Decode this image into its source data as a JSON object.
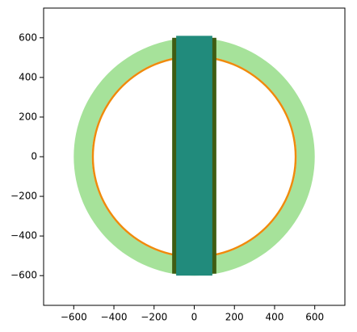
{
  "chart_data": {
    "type": "geometry",
    "xlim": [
      -750,
      750
    ],
    "ylim": [
      -750,
      750
    ],
    "xticks": [
      {
        "value": -600,
        "label": "−600"
      },
      {
        "value": -400,
        "label": "−400"
      },
      {
        "value": -200,
        "label": "−200"
      },
      0,
      200,
      400,
      600
    ],
    "yticks": [
      {
        "value": -600,
        "label": "−600"
      },
      {
        "value": -400,
        "label": "−400"
      },
      {
        "value": -200,
        "label": "−200"
      },
      0,
      200,
      400,
      600
    ],
    "shapes": [
      {
        "shape": "annulus",
        "r_inner": 510,
        "r_outer": 600,
        "color": "#a6e29a"
      },
      {
        "shape": "annulus",
        "r_inner": 500,
        "r_outer": 510,
        "color": "#ef8a0c"
      },
      {
        "shape": "rect",
        "x": [
          -110,
          110
        ],
        "y": [
          -590,
          600
        ],
        "color": "#3f5c13"
      },
      {
        "shape": "rect",
        "x": [
          -90,
          90
        ],
        "y": [
          -600,
          610
        ],
        "color": "#218b7c"
      }
    ]
  }
}
